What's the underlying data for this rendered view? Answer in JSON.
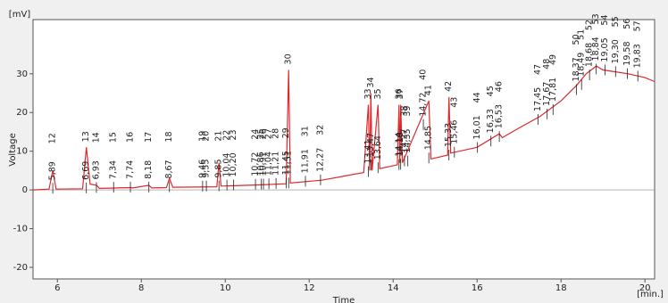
{
  "chart_data": {
    "type": "line",
    "y_unit": "[mV]",
    "x_unit": "[min.]",
    "ylabel": "Voltage",
    "xlabel": "Time",
    "xlim": [
      5.42,
      20.23
    ],
    "ylim": [
      -23,
      44
    ],
    "xticks": [
      6,
      8,
      10,
      12,
      14,
      16,
      18,
      20
    ],
    "yticks": [
      -20,
      -10,
      0,
      10,
      20,
      30
    ],
    "grid": false,
    "series": [
      {
        "color": "#e0282c",
        "x": [
          5.42,
          5.8,
          5.89,
          5.97,
          6.6,
          6.69,
          6.78,
          6.93,
          7.0,
          7.74,
          7.8,
          8.18,
          8.25,
          8.6,
          8.67,
          8.75,
          9.8,
          9.85,
          9.9,
          10.8,
          11.45,
          11.51,
          11.55,
          12.3,
          13.3,
          13.41,
          13.44,
          13.47,
          13.5,
          13.64,
          13.68,
          14.1,
          14.14,
          14.16,
          14.18,
          14.22,
          14.85,
          14.9,
          15.3,
          15.33,
          15.37,
          16.0,
          16.53,
          16.6,
          17.0,
          17.5,
          18.0,
          18.37,
          18.6,
          18.84,
          19.0,
          19.3,
          19.6,
          20.0,
          20.23
        ],
        "values": [
          0,
          0.2,
          5,
          0.2,
          0.3,
          11,
          1.5,
          1.2,
          0.4,
          0.6,
          0.5,
          1.2,
          0.5,
          0.6,
          3,
          0.7,
          0.8,
          7,
          1,
          1.3,
          1.6,
          31,
          1.8,
          2.5,
          4.5,
          22,
          5,
          25,
          5,
          22,
          5.5,
          6.5,
          22,
          7,
          22,
          7,
          23,
          8,
          9,
          24,
          9.5,
          11,
          14.5,
          13.5,
          16,
          19,
          23,
          27,
          30,
          32,
          31,
          30.5,
          30,
          29,
          28
        ]
      }
    ],
    "peaks": [
      {
        "time": {
          "value": 5.89,
          "label": "5,89"
        },
        "number": 12
      },
      {
        "time": {
          "value": 6.69,
          "label": "6,69"
        },
        "number": 13
      },
      {
        "time": {
          "value": 6.93,
          "label": "6,93"
        },
        "number": 14
      },
      {
        "time": {
          "value": 7.34,
          "label": "7,34"
        },
        "number": 15
      },
      {
        "time": {
          "value": 7.74,
          "label": "7,74"
        },
        "number": 16
      },
      {
        "time": {
          "value": 8.18,
          "label": "8,18"
        },
        "number": 17
      },
      {
        "time": {
          "value": 8.67,
          "label": "8,67"
        },
        "number": 18
      },
      {
        "time": {
          "value": 9.46,
          "label": "9,46"
        },
        "number": 19
      },
      {
        "time": {
          "value": 9.55,
          "label": "9,55"
        },
        "number": 20
      },
      {
        "time": {
          "value": 9.85,
          "label": "9,85"
        },
        "number": 21
      },
      {
        "time": {
          "value": 10.04,
          "label": "10,04"
        },
        "number": 22
      },
      {
        "time": {
          "value": 10.2,
          "label": "10,20"
        },
        "number": 23
      },
      {
        "time": {
          "value": 10.72,
          "label": "10,72"
        },
        "number": 24
      },
      {
        "time": {
          "value": 10.86,
          "label": "10,86"
        },
        "number": 25
      },
      {
        "time": {
          "value": 10.91,
          "label": "10,91"
        },
        "number": 26
      },
      {
        "time": {
          "value": 11.04,
          "label": "11,04"
        },
        "number": 27
      },
      {
        "time": {
          "value": 11.21,
          "label": "11,21"
        },
        "number": 28
      },
      {
        "time": {
          "value": 11.45,
          "label": "11,45"
        },
        "number": 29
      },
      {
        "time": {
          "value": 11.51,
          "label": "11,51"
        },
        "number": 30
      },
      {
        "time": {
          "value": 11.91,
          "label": "11,91"
        },
        "number": 31
      },
      {
        "time": {
          "value": 12.27,
          "label": "12,27"
        },
        "number": 32
      },
      {
        "time": {
          "value": 13.41,
          "label": "13,41"
        },
        "number": 33
      },
      {
        "time": {
          "value": 13.47,
          "label": "13,47"
        },
        "number": 34
      },
      {
        "time": {
          "value": 13.64,
          "label": "13,64"
        },
        "number": 35
      },
      {
        "time": {
          "value": 14.14,
          "label": "14,14"
        },
        "number": 36
      },
      {
        "time": {
          "value": 14.18,
          "label": "14,18"
        },
        "number": 37
      },
      {
        "time": {
          "value": 14.27,
          "label": "14,27"
        },
        "number": 38
      },
      {
        "time": {
          "value": 14.35,
          "label": "14,35"
        },
        "number": 39
      },
      {
        "time": {
          "value": 14.72,
          "label": "14,72"
        },
        "number": 40
      },
      {
        "time": {
          "value": 14.85,
          "label": "14,85"
        },
        "number": 41
      },
      {
        "time": {
          "value": 15.33,
          "label": "15,33"
        },
        "number": 42
      },
      {
        "time": {
          "value": 15.46,
          "label": "15,46"
        },
        "number": 43
      },
      {
        "time": {
          "value": 16.01,
          "label": "16,01"
        },
        "number": 44
      },
      {
        "time": {
          "value": 16.33,
          "label": "16,33"
        },
        "number": 45
      },
      {
        "time": {
          "value": 16.53,
          "label": "16,53"
        },
        "number": 46
      },
      {
        "time": {
          "value": 17.45,
          "label": "17,45"
        },
        "number": 47
      },
      {
        "time": {
          "value": 17.67,
          "label": "17,67"
        },
        "number": 48
      },
      {
        "time": {
          "value": 17.81,
          "label": "17,81"
        },
        "number": 49
      },
      {
        "time": {
          "value": 18.37,
          "label": "18,37"
        },
        "number": 50
      },
      {
        "time": {
          "value": 18.49,
          "label": "18,49"
        },
        "number": 51
      },
      {
        "time": {
          "value": 18.68,
          "label": "18,68"
        },
        "number": 52
      },
      {
        "time": {
          "value": 18.84,
          "label": "18,84"
        },
        "number": 53
      },
      {
        "time": {
          "value": 19.05,
          "label": "19,05"
        },
        "number": 54
      },
      {
        "time": {
          "value": 19.3,
          "label": "19,30"
        },
        "number": 55
      },
      {
        "time": {
          "value": 19.58,
          "label": "19,58"
        },
        "number": 56
      },
      {
        "time": {
          "value": 19.83,
          "label": "19,83"
        },
        "number": 57
      }
    ]
  }
}
